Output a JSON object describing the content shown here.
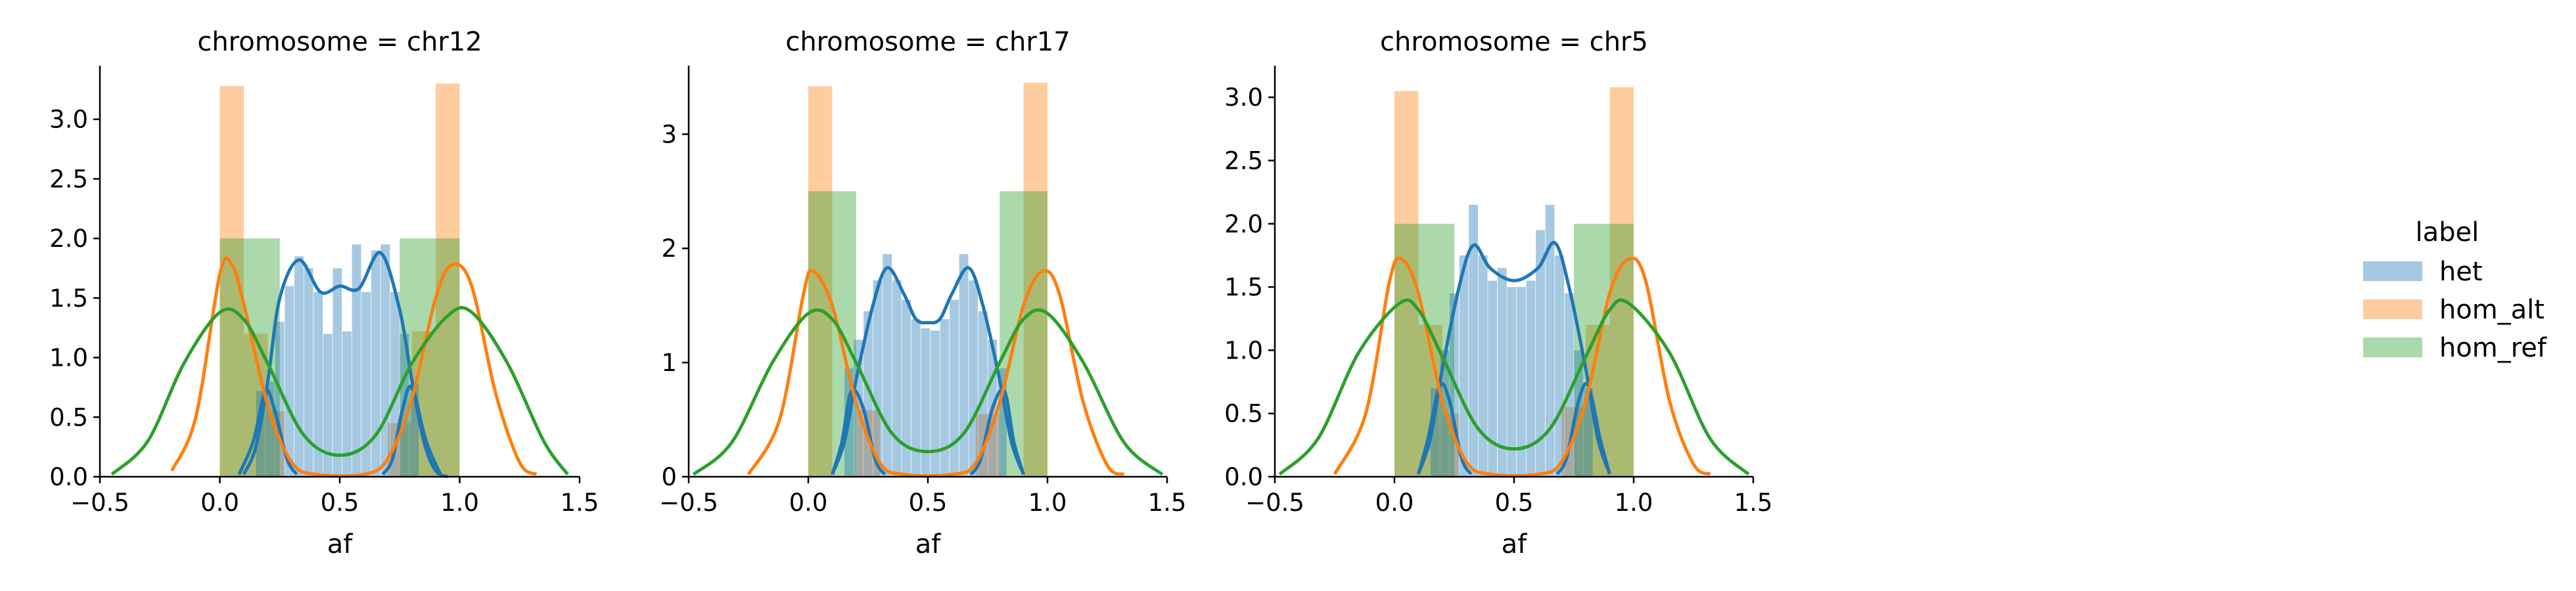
{
  "chart_data": {
    "type": "histogram+kde",
    "facet_variable": "chromosome",
    "x_label": "af",
    "x_ticks": [
      "−0.5",
      "0.0",
      "0.5",
      "1.0",
      "1.5"
    ],
    "xlim": [
      -0.5,
      1.5
    ],
    "series_colors": {
      "het": {
        "bar": "#9ec0dc",
        "line": "#1f77b4"
      },
      "hom_alt": {
        "bar": "#ffc79b",
        "line": "#ff7f0e"
      },
      "hom_ref": {
        "bar": "#a6d9a0",
        "line": "#2ca02c"
      }
    },
    "legend": {
      "title": "label",
      "entries": [
        "het",
        "hom_alt",
        "hom_ref"
      ],
      "position": "right"
    },
    "panels": [
      {
        "title": "chromosome = chr12",
        "ylim": [
          0,
          3.45
        ],
        "y_ticks": [
          "0.0",
          "0.5",
          "1.0",
          "1.5",
          "2.0",
          "2.5",
          "3.0"
        ],
        "y_tick_values": [
          0,
          0.5,
          1.0,
          1.5,
          2.0,
          2.5,
          3.0
        ],
        "hom_alt_bars": [
          {
            "x0": 0.0,
            "x1": 0.1,
            "h": 3.28
          },
          {
            "x0": 0.1,
            "x1": 0.2,
            "h": 1.2
          },
          {
            "x0": 0.2,
            "x1": 0.27,
            "h": 0.55
          },
          {
            "x0": 0.7,
            "x1": 0.8,
            "h": 0.45
          },
          {
            "x0": 0.8,
            "x1": 0.9,
            "h": 1.22
          },
          {
            "x0": 0.9,
            "x1": 1.0,
            "h": 3.3
          }
        ],
        "hom_ref_bars": [
          {
            "x0": 0.0,
            "x1": 0.25,
            "h": 2.0
          },
          {
            "x0": 0.75,
            "x1": 1.0,
            "h": 2.0
          }
        ],
        "het_bars": [
          {
            "x": 0.17,
            "h": 0.72
          },
          {
            "x": 0.21,
            "h": 0.8
          },
          {
            "x": 0.25,
            "h": 1.3
          },
          {
            "x": 0.29,
            "h": 1.6
          },
          {
            "x": 0.33,
            "h": 1.85
          },
          {
            "x": 0.37,
            "h": 1.75
          },
          {
            "x": 0.41,
            "h": 1.55
          },
          {
            "x": 0.45,
            "h": 1.2
          },
          {
            "x": 0.49,
            "h": 1.75
          },
          {
            "x": 0.53,
            "h": 1.22
          },
          {
            "x": 0.57,
            "h": 1.95
          },
          {
            "x": 0.61,
            "h": 1.55
          },
          {
            "x": 0.65,
            "h": 1.9
          },
          {
            "x": 0.69,
            "h": 1.95
          },
          {
            "x": 0.73,
            "h": 1.55
          },
          {
            "x": 0.77,
            "h": 1.2
          },
          {
            "x": 0.81,
            "h": 0.78
          }
        ],
        "het_kde": [
          [
            0.1,
            0.02
          ],
          [
            0.15,
            0.25
          ],
          [
            0.2,
            0.8
          ],
          [
            0.25,
            1.5
          ],
          [
            0.33,
            1.82
          ],
          [
            0.42,
            1.55
          ],
          [
            0.5,
            1.6
          ],
          [
            0.58,
            1.58
          ],
          [
            0.67,
            1.88
          ],
          [
            0.75,
            1.4
          ],
          [
            0.8,
            0.82
          ],
          [
            0.85,
            0.3
          ],
          [
            0.9,
            0.05
          ],
          [
            0.95,
            0.0
          ]
        ],
        "hom_alt_kde": [
          [
            -0.2,
            0.05
          ],
          [
            -0.1,
            0.5
          ],
          [
            0.0,
            1.7
          ],
          [
            0.05,
            1.78
          ],
          [
            0.1,
            1.45
          ],
          [
            0.2,
            0.6
          ],
          [
            0.3,
            0.12
          ],
          [
            0.4,
            0.02
          ],
          [
            0.6,
            0.02
          ],
          [
            0.7,
            0.15
          ],
          [
            0.8,
            0.65
          ],
          [
            0.9,
            1.5
          ],
          [
            0.97,
            1.78
          ],
          [
            1.05,
            1.6
          ],
          [
            1.15,
            0.7
          ],
          [
            1.25,
            0.12
          ],
          [
            1.32,
            0.02
          ]
        ],
        "hom_ref_kde": [
          [
            -0.45,
            0.02
          ],
          [
            -0.3,
            0.3
          ],
          [
            -0.15,
            0.95
          ],
          [
            0.0,
            1.38
          ],
          [
            0.1,
            1.32
          ],
          [
            0.2,
            0.95
          ],
          [
            0.35,
            0.35
          ],
          [
            0.5,
            0.18
          ],
          [
            0.65,
            0.35
          ],
          [
            0.8,
            0.95
          ],
          [
            0.95,
            1.35
          ],
          [
            1.05,
            1.38
          ],
          [
            1.2,
            0.95
          ],
          [
            1.35,
            0.3
          ],
          [
            1.45,
            0.02
          ]
        ],
        "inner_curves": [
          {
            "series": "het",
            "points": [
              [
                0.08,
                0.02
              ],
              [
                0.14,
                0.3
              ],
              [
                0.19,
                0.72
              ],
              [
                0.23,
                0.55
              ],
              [
                0.28,
                0.15
              ],
              [
                0.32,
                0.02
              ]
            ]
          },
          {
            "series": "het",
            "points": [
              [
                0.68,
                0.02
              ],
              [
                0.72,
                0.15
              ],
              [
                0.76,
                0.55
              ],
              [
                0.8,
                0.75
              ],
              [
                0.86,
                0.3
              ],
              [
                0.92,
                0.02
              ]
            ]
          }
        ]
      },
      {
        "title": "chromosome = chr17",
        "ylim": [
          0,
          3.6
        ],
        "y_ticks": [
          "0",
          "1",
          "2",
          "3"
        ],
        "y_tick_values": [
          0,
          1,
          2,
          3
        ],
        "hom_alt_bars": [
          {
            "x0": 0.0,
            "x1": 0.1,
            "h": 3.42
          },
          {
            "x0": 0.2,
            "x1": 0.3,
            "h": 0.58
          },
          {
            "x0": 0.7,
            "x1": 0.8,
            "h": 0.55
          },
          {
            "x0": 0.9,
            "x1": 1.0,
            "h": 3.45
          }
        ],
        "hom_ref_bars": [
          {
            "x0": 0.0,
            "x1": 0.2,
            "h": 2.5
          },
          {
            "x0": 0.8,
            "x1": 1.0,
            "h": 2.5
          }
        ],
        "het_bars": [
          {
            "x": 0.17,
            "h": 0.95
          },
          {
            "x": 0.21,
            "h": 1.2
          },
          {
            "x": 0.25,
            "h": 1.45
          },
          {
            "x": 0.29,
            "h": 1.72
          },
          {
            "x": 0.33,
            "h": 1.95
          },
          {
            "x": 0.37,
            "h": 1.72
          },
          {
            "x": 0.41,
            "h": 1.55
          },
          {
            "x": 0.45,
            "h": 1.38
          },
          {
            "x": 0.49,
            "h": 1.3
          },
          {
            "x": 0.53,
            "h": 1.28
          },
          {
            "x": 0.57,
            "h": 1.38
          },
          {
            "x": 0.61,
            "h": 1.55
          },
          {
            "x": 0.65,
            "h": 1.95
          },
          {
            "x": 0.69,
            "h": 1.72
          },
          {
            "x": 0.73,
            "h": 1.45
          },
          {
            "x": 0.77,
            "h": 1.2
          },
          {
            "x": 0.81,
            "h": 0.95
          }
        ],
        "het_kde": [
          [
            0.1,
            0.02
          ],
          [
            0.15,
            0.3
          ],
          [
            0.2,
            0.85
          ],
          [
            0.27,
            1.5
          ],
          [
            0.33,
            1.83
          ],
          [
            0.4,
            1.6
          ],
          [
            0.45,
            1.38
          ],
          [
            0.5,
            1.35
          ],
          [
            0.55,
            1.38
          ],
          [
            0.6,
            1.6
          ],
          [
            0.67,
            1.83
          ],
          [
            0.73,
            1.5
          ],
          [
            0.8,
            0.85
          ],
          [
            0.85,
            0.3
          ],
          [
            0.9,
            0.02
          ]
        ],
        "hom_alt_kde": [
          [
            -0.25,
            0.02
          ],
          [
            -0.12,
            0.5
          ],
          [
            -0.02,
            1.6
          ],
          [
            0.02,
            1.8
          ],
          [
            0.1,
            1.5
          ],
          [
            0.2,
            0.65
          ],
          [
            0.3,
            0.12
          ],
          [
            0.4,
            0.02
          ],
          [
            0.6,
            0.02
          ],
          [
            0.7,
            0.12
          ],
          [
            0.8,
            0.65
          ],
          [
            0.9,
            1.5
          ],
          [
            0.98,
            1.8
          ],
          [
            1.05,
            1.6
          ],
          [
            1.15,
            0.65
          ],
          [
            1.25,
            0.1
          ],
          [
            1.32,
            0.02
          ]
        ],
        "hom_ref_kde": [
          [
            -0.48,
            0.02
          ],
          [
            -0.32,
            0.3
          ],
          [
            -0.15,
            1.0
          ],
          [
            0.0,
            1.43
          ],
          [
            0.1,
            1.38
          ],
          [
            0.2,
            1.0
          ],
          [
            0.35,
            0.38
          ],
          [
            0.5,
            0.22
          ],
          [
            0.65,
            0.38
          ],
          [
            0.8,
            1.0
          ],
          [
            0.9,
            1.38
          ],
          [
            1.0,
            1.43
          ],
          [
            1.15,
            1.0
          ],
          [
            1.32,
            0.3
          ],
          [
            1.48,
            0.02
          ]
        ],
        "inner_curves": [
          {
            "series": "het",
            "points": [
              [
                0.1,
                0.02
              ],
              [
                0.14,
                0.3
              ],
              [
                0.18,
                0.75
              ],
              [
                0.23,
                0.6
              ],
              [
                0.28,
                0.15
              ],
              [
                0.32,
                0.02
              ]
            ]
          },
          {
            "series": "het",
            "points": [
              [
                0.68,
                0.02
              ],
              [
                0.72,
                0.15
              ],
              [
                0.77,
                0.6
              ],
              [
                0.82,
                0.75
              ],
              [
                0.86,
                0.3
              ],
              [
                0.9,
                0.02
              ]
            ]
          }
        ]
      },
      {
        "title": "chromosome = chr5",
        "ylim": [
          0,
          3.25
        ],
        "y_ticks": [
          "0.0",
          "0.5",
          "1.0",
          "1.5",
          "2.0",
          "2.5",
          "3.0"
        ],
        "y_tick_values": [
          0,
          0.5,
          1.0,
          1.5,
          2.0,
          2.5,
          3.0
        ],
        "hom_alt_bars": [
          {
            "x0": 0.0,
            "x1": 0.1,
            "h": 3.05
          },
          {
            "x0": 0.1,
            "x1": 0.2,
            "h": 1.2
          },
          {
            "x0": 0.2,
            "x1": 0.27,
            "h": 0.5
          },
          {
            "x0": 0.7,
            "x1": 0.8,
            "h": 0.55
          },
          {
            "x0": 0.8,
            "x1": 0.9,
            "h": 1.2
          },
          {
            "x0": 0.9,
            "x1": 1.0,
            "h": 3.08
          }
        ],
        "hom_ref_bars": [
          {
            "x0": 0.0,
            "x1": 0.25,
            "h": 2.0
          },
          {
            "x0": 0.75,
            "x1": 1.0,
            "h": 2.0
          }
        ],
        "het_bars": [
          {
            "x": 0.17,
            "h": 0.7
          },
          {
            "x": 0.21,
            "h": 1.0
          },
          {
            "x": 0.25,
            "h": 1.45
          },
          {
            "x": 0.29,
            "h": 1.75
          },
          {
            "x": 0.33,
            "h": 2.15
          },
          {
            "x": 0.37,
            "h": 1.75
          },
          {
            "x": 0.41,
            "h": 1.55
          },
          {
            "x": 0.45,
            "h": 1.65
          },
          {
            "x": 0.49,
            "h": 1.5
          },
          {
            "x": 0.53,
            "h": 1.5
          },
          {
            "x": 0.57,
            "h": 1.55
          },
          {
            "x": 0.61,
            "h": 1.95
          },
          {
            "x": 0.65,
            "h": 2.15
          },
          {
            "x": 0.69,
            "h": 1.75
          },
          {
            "x": 0.73,
            "h": 1.45
          },
          {
            "x": 0.77,
            "h": 1.0
          },
          {
            "x": 0.81,
            "h": 0.7
          }
        ],
        "het_kde": [
          [
            0.1,
            0.02
          ],
          [
            0.15,
            0.3
          ],
          [
            0.2,
            0.85
          ],
          [
            0.27,
            1.5
          ],
          [
            0.33,
            1.83
          ],
          [
            0.4,
            1.65
          ],
          [
            0.5,
            1.55
          ],
          [
            0.6,
            1.65
          ],
          [
            0.67,
            1.85
          ],
          [
            0.73,
            1.5
          ],
          [
            0.8,
            0.85
          ],
          [
            0.85,
            0.3
          ],
          [
            0.9,
            0.02
          ]
        ],
        "hom_alt_kde": [
          [
            -0.25,
            0.02
          ],
          [
            -0.12,
            0.5
          ],
          [
            -0.02,
            1.55
          ],
          [
            0.03,
            1.72
          ],
          [
            0.1,
            1.45
          ],
          [
            0.2,
            0.6
          ],
          [
            0.3,
            0.12
          ],
          [
            0.4,
            0.02
          ],
          [
            0.6,
            0.02
          ],
          [
            0.7,
            0.12
          ],
          [
            0.8,
            0.6
          ],
          [
            0.9,
            1.45
          ],
          [
            0.98,
            1.72
          ],
          [
            1.05,
            1.55
          ],
          [
            1.15,
            0.6
          ],
          [
            1.25,
            0.1
          ],
          [
            1.32,
            0.02
          ]
        ],
        "hom_ref_kde": [
          [
            -0.48,
            0.02
          ],
          [
            -0.32,
            0.3
          ],
          [
            -0.15,
            0.98
          ],
          [
            0.02,
            1.37
          ],
          [
            0.1,
            1.32
          ],
          [
            0.2,
            0.95
          ],
          [
            0.35,
            0.38
          ],
          [
            0.5,
            0.22
          ],
          [
            0.65,
            0.38
          ],
          [
            0.8,
            0.95
          ],
          [
            0.9,
            1.32
          ],
          [
            0.98,
            1.37
          ],
          [
            1.15,
            0.98
          ],
          [
            1.32,
            0.3
          ],
          [
            1.48,
            0.02
          ]
        ],
        "inner_curves": [
          {
            "series": "het",
            "points": [
              [
                0.1,
                0.02
              ],
              [
                0.14,
                0.3
              ],
              [
                0.19,
                0.72
              ],
              [
                0.23,
                0.6
              ],
              [
                0.28,
                0.15
              ],
              [
                0.32,
                0.02
              ]
            ]
          },
          {
            "series": "het",
            "points": [
              [
                0.68,
                0.02
              ],
              [
                0.72,
                0.15
              ],
              [
                0.77,
                0.6
              ],
              [
                0.81,
                0.72
              ],
              [
                0.86,
                0.3
              ],
              [
                0.9,
                0.02
              ]
            ]
          }
        ]
      }
    ]
  }
}
